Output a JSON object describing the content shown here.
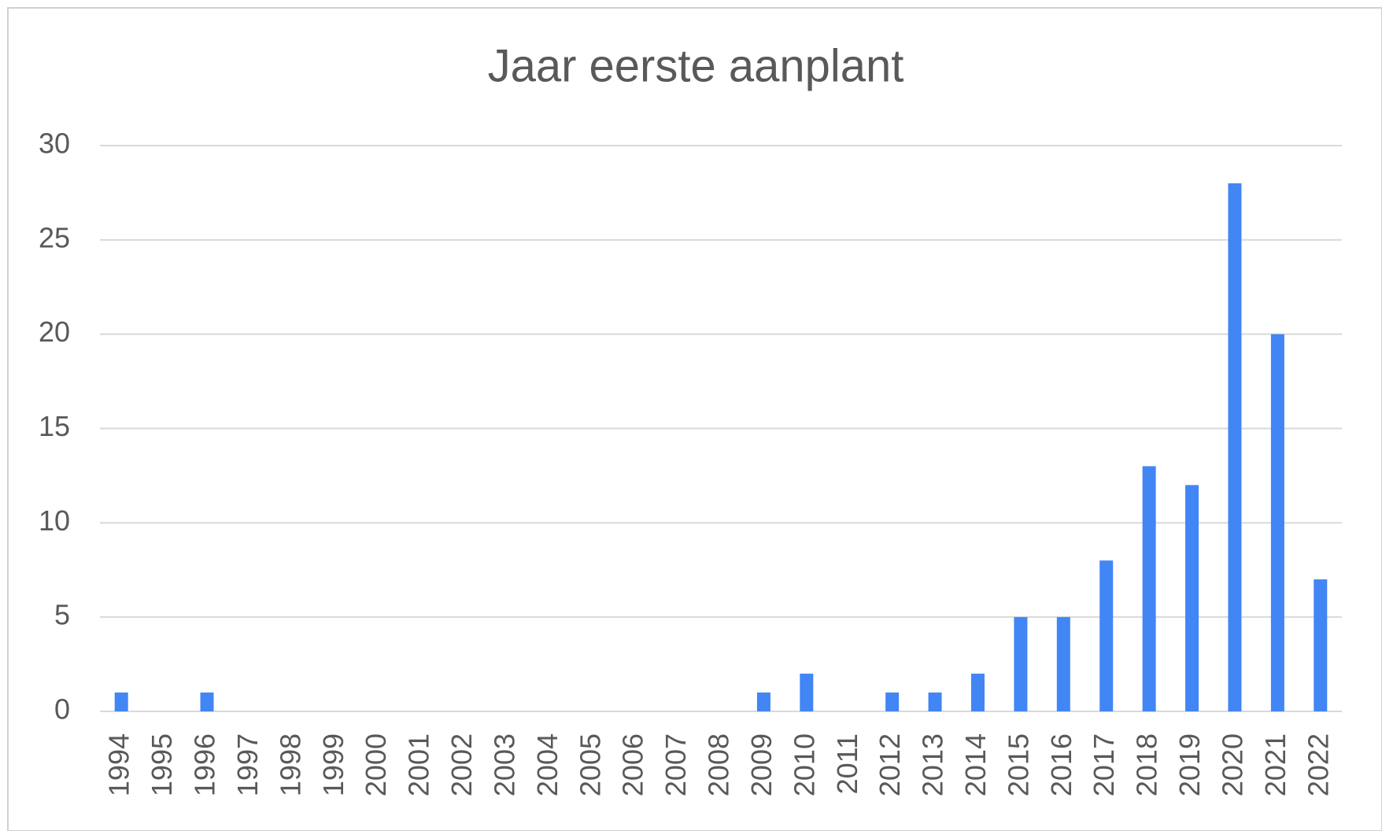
{
  "chart_data": {
    "type": "bar",
    "title": "Jaar eerste aanplant",
    "categories": [
      "1994",
      "1995",
      "1996",
      "1997",
      "1998",
      "1999",
      "2000",
      "2001",
      "2002",
      "2003",
      "2004",
      "2005",
      "2006",
      "2007",
      "2008",
      "2009",
      "2010",
      "2011",
      "2012",
      "2013",
      "2014",
      "2015",
      "2016",
      "2017",
      "2018",
      "2019",
      "2020",
      "2021",
      "2022"
    ],
    "values": [
      1,
      0,
      1,
      0,
      0,
      0,
      0,
      0,
      0,
      0,
      0,
      0,
      0,
      0,
      0,
      1,
      2,
      0,
      1,
      1,
      2,
      5,
      5,
      8,
      13,
      12,
      28,
      20,
      7
    ],
    "color": "#4285f4",
    "ylim": [
      0,
      30
    ],
    "yticks": [
      0,
      5,
      10,
      15,
      20,
      25,
      30
    ],
    "grid": true
  }
}
